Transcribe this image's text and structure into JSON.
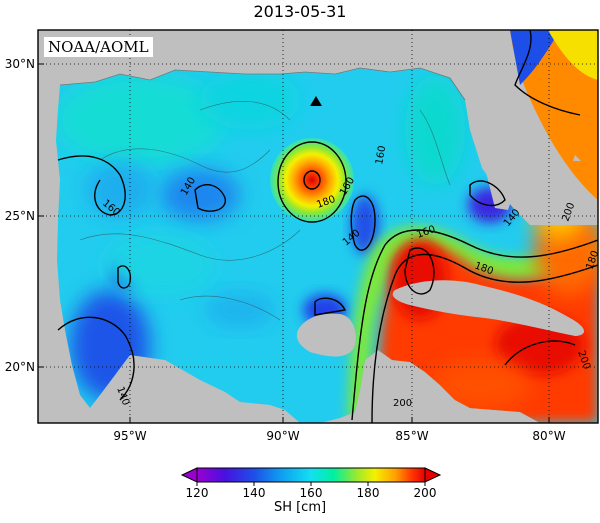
{
  "header": {
    "title": "2013-05-31"
  },
  "source_label": "NOAA/AOML",
  "map": {
    "lat_ticks": [
      "30°N",
      "25°N",
      "20°N"
    ],
    "lon_ticks": [
      "95°W",
      "90°W",
      "85°W",
      "80°W"
    ],
    "contour_labels": [
      "160",
      "140",
      "160",
      "180",
      "160",
      "140",
      "160",
      "180",
      "180",
      "200",
      "200",
      "200",
      "140",
      "140"
    ],
    "marker": "triangle-marker"
  },
  "colorbar": {
    "ticks": [
      "120",
      "140",
      "160",
      "180",
      "200"
    ],
    "label": "SH [cm]",
    "colors": [
      "#9a00d0",
      "#2a1de0",
      "#0f7ff0",
      "#13e0f0",
      "#00f0a0",
      "#9ae830",
      "#f5f000",
      "#ffa000",
      "#ff3a00",
      "#e80000"
    ]
  },
  "colors": {
    "land": "#bfbfbf",
    "ocean_base": "#22ccee",
    "loop_current": "#ff3000"
  }
}
